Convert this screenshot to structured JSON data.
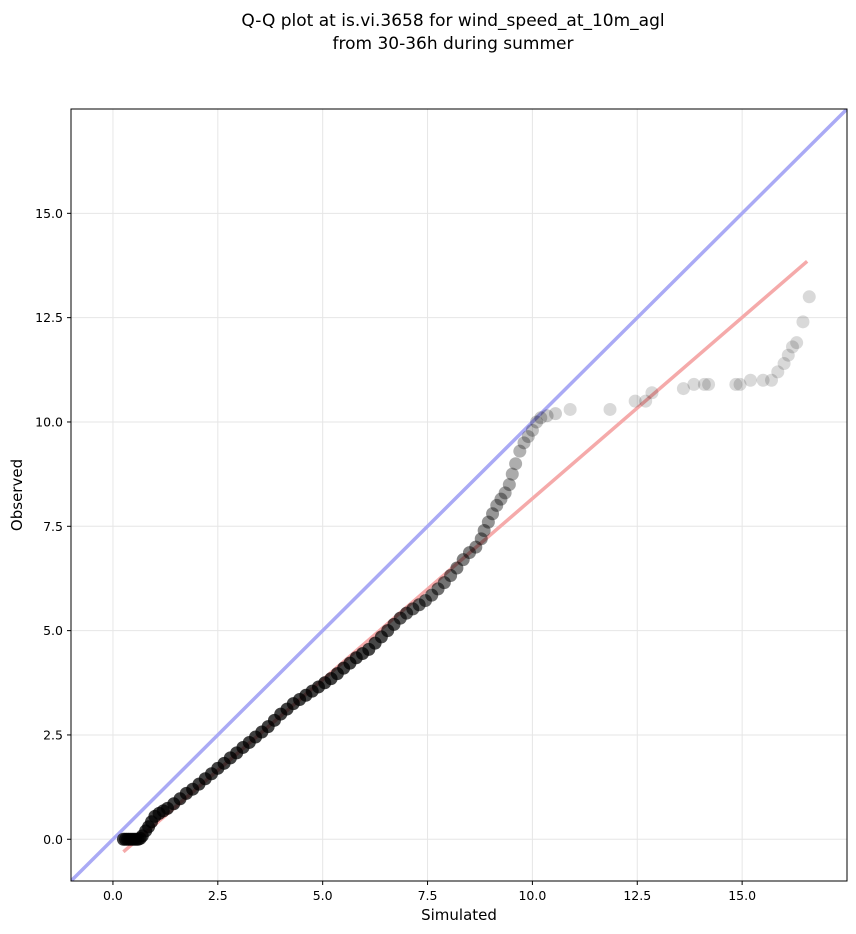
{
  "chart_data": {
    "type": "scatter",
    "title_lines": [
      "Q-Q plot at is.vi.3658 for wind_speed_at_10m_agl",
      "from 30-36h during summer"
    ],
    "xlabel": "Simulated",
    "ylabel": "Observed",
    "xlim": [
      -1.0,
      17.5
    ],
    "ylim": [
      -1.0,
      17.5
    ],
    "xticks": [
      0.0,
      2.5,
      5.0,
      7.5,
      10.0,
      12.5,
      15.0
    ],
    "yticks": [
      0.0,
      2.5,
      5.0,
      7.5,
      10.0,
      12.5,
      15.0
    ],
    "xtick_labels": [
      "0.0",
      "2.5",
      "5.0",
      "7.5",
      "10.0",
      "12.5",
      "15.0"
    ],
    "ytick_labels": [
      "0.0",
      "2.5",
      "5.0",
      "7.5",
      "10.0",
      "12.5",
      "15.0"
    ],
    "grid": true,
    "reference_line": {
      "name": "1:1 line",
      "color": "#aaaaf5",
      "points": [
        [
          -1.0,
          -1.0
        ],
        [
          17.5,
          17.5
        ]
      ]
    },
    "fit_line": {
      "name": "linear fit",
      "color": "#f5aaaa",
      "points": [
        [
          0.25,
          -0.3
        ],
        [
          16.55,
          13.85
        ]
      ]
    },
    "point_color": "#000000",
    "points": [
      [
        0.25,
        0.0
      ],
      [
        0.3,
        0.0
      ],
      [
        0.35,
        0.0
      ],
      [
        0.4,
        0.0
      ],
      [
        0.45,
        0.0
      ],
      [
        0.5,
        0.0
      ],
      [
        0.55,
        0.0
      ],
      [
        0.6,
        0.0
      ],
      [
        0.65,
        0.02
      ],
      [
        0.7,
        0.08
      ],
      [
        0.78,
        0.2
      ],
      [
        0.85,
        0.3
      ],
      [
        0.92,
        0.42
      ],
      [
        1.0,
        0.55
      ],
      [
        1.1,
        0.62
      ],
      [
        1.2,
        0.68
      ],
      [
        1.3,
        0.74
      ],
      [
        1.45,
        0.85
      ],
      [
        1.6,
        0.97
      ],
      [
        1.75,
        1.1
      ],
      [
        1.9,
        1.2
      ],
      [
        2.05,
        1.32
      ],
      [
        2.2,
        1.45
      ],
      [
        2.35,
        1.57
      ],
      [
        2.5,
        1.7
      ],
      [
        2.65,
        1.82
      ],
      [
        2.8,
        1.95
      ],
      [
        2.95,
        2.07
      ],
      [
        3.1,
        2.2
      ],
      [
        3.25,
        2.32
      ],
      [
        3.4,
        2.45
      ],
      [
        3.55,
        2.57
      ],
      [
        3.7,
        2.7
      ],
      [
        3.85,
        2.85
      ],
      [
        4.0,
        3.0
      ],
      [
        4.15,
        3.12
      ],
      [
        4.3,
        3.25
      ],
      [
        4.45,
        3.35
      ],
      [
        4.6,
        3.45
      ],
      [
        4.75,
        3.55
      ],
      [
        4.9,
        3.65
      ],
      [
        5.05,
        3.75
      ],
      [
        5.2,
        3.85
      ],
      [
        5.35,
        3.97
      ],
      [
        5.5,
        4.1
      ],
      [
        5.65,
        4.22
      ],
      [
        5.8,
        4.35
      ],
      [
        5.95,
        4.45
      ],
      [
        6.1,
        4.55
      ],
      [
        6.25,
        4.7
      ],
      [
        6.4,
        4.85
      ],
      [
        6.55,
        5.0
      ],
      [
        6.7,
        5.15
      ],
      [
        6.85,
        5.3
      ],
      [
        7.0,
        5.42
      ],
      [
        7.15,
        5.52
      ],
      [
        7.3,
        5.62
      ],
      [
        7.45,
        5.72
      ],
      [
        7.6,
        5.85
      ],
      [
        7.75,
        6.0
      ],
      [
        7.9,
        6.15
      ],
      [
        8.05,
        6.32
      ],
      [
        8.2,
        6.5
      ],
      [
        8.35,
        6.7
      ],
      [
        8.5,
        6.87
      ],
      [
        8.65,
        7.0
      ],
      [
        8.78,
        7.2
      ],
      [
        8.85,
        7.4
      ],
      [
        8.95,
        7.6
      ],
      [
        9.05,
        7.8
      ],
      [
        9.15,
        8.0
      ],
      [
        9.25,
        8.15
      ],
      [
        9.35,
        8.3
      ],
      [
        9.45,
        8.5
      ],
      [
        9.52,
        8.75
      ],
      [
        9.6,
        9.0
      ],
      [
        9.7,
        9.3
      ],
      [
        9.8,
        9.5
      ],
      [
        9.9,
        9.65
      ],
      [
        10.0,
        9.8
      ],
      [
        10.1,
        10.0
      ],
      [
        10.2,
        10.1
      ],
      [
        10.35,
        10.15
      ],
      [
        10.55,
        10.2
      ],
      [
        10.9,
        10.3
      ],
      [
        11.85,
        10.3
      ],
      [
        12.45,
        10.5
      ],
      [
        12.7,
        10.5
      ],
      [
        12.85,
        10.7
      ],
      [
        13.6,
        10.8
      ],
      [
        13.85,
        10.9
      ],
      [
        14.1,
        10.9
      ],
      [
        14.2,
        10.9
      ],
      [
        14.85,
        10.9
      ],
      [
        14.95,
        10.9
      ],
      [
        15.2,
        11.0
      ],
      [
        15.5,
        11.0
      ],
      [
        15.7,
        11.0
      ],
      [
        15.85,
        11.2
      ],
      [
        16.0,
        11.4
      ],
      [
        16.1,
        11.6
      ],
      [
        16.2,
        11.8
      ],
      [
        16.3,
        11.9
      ],
      [
        16.45,
        12.4
      ],
      [
        16.6,
        13.0
      ]
    ]
  }
}
